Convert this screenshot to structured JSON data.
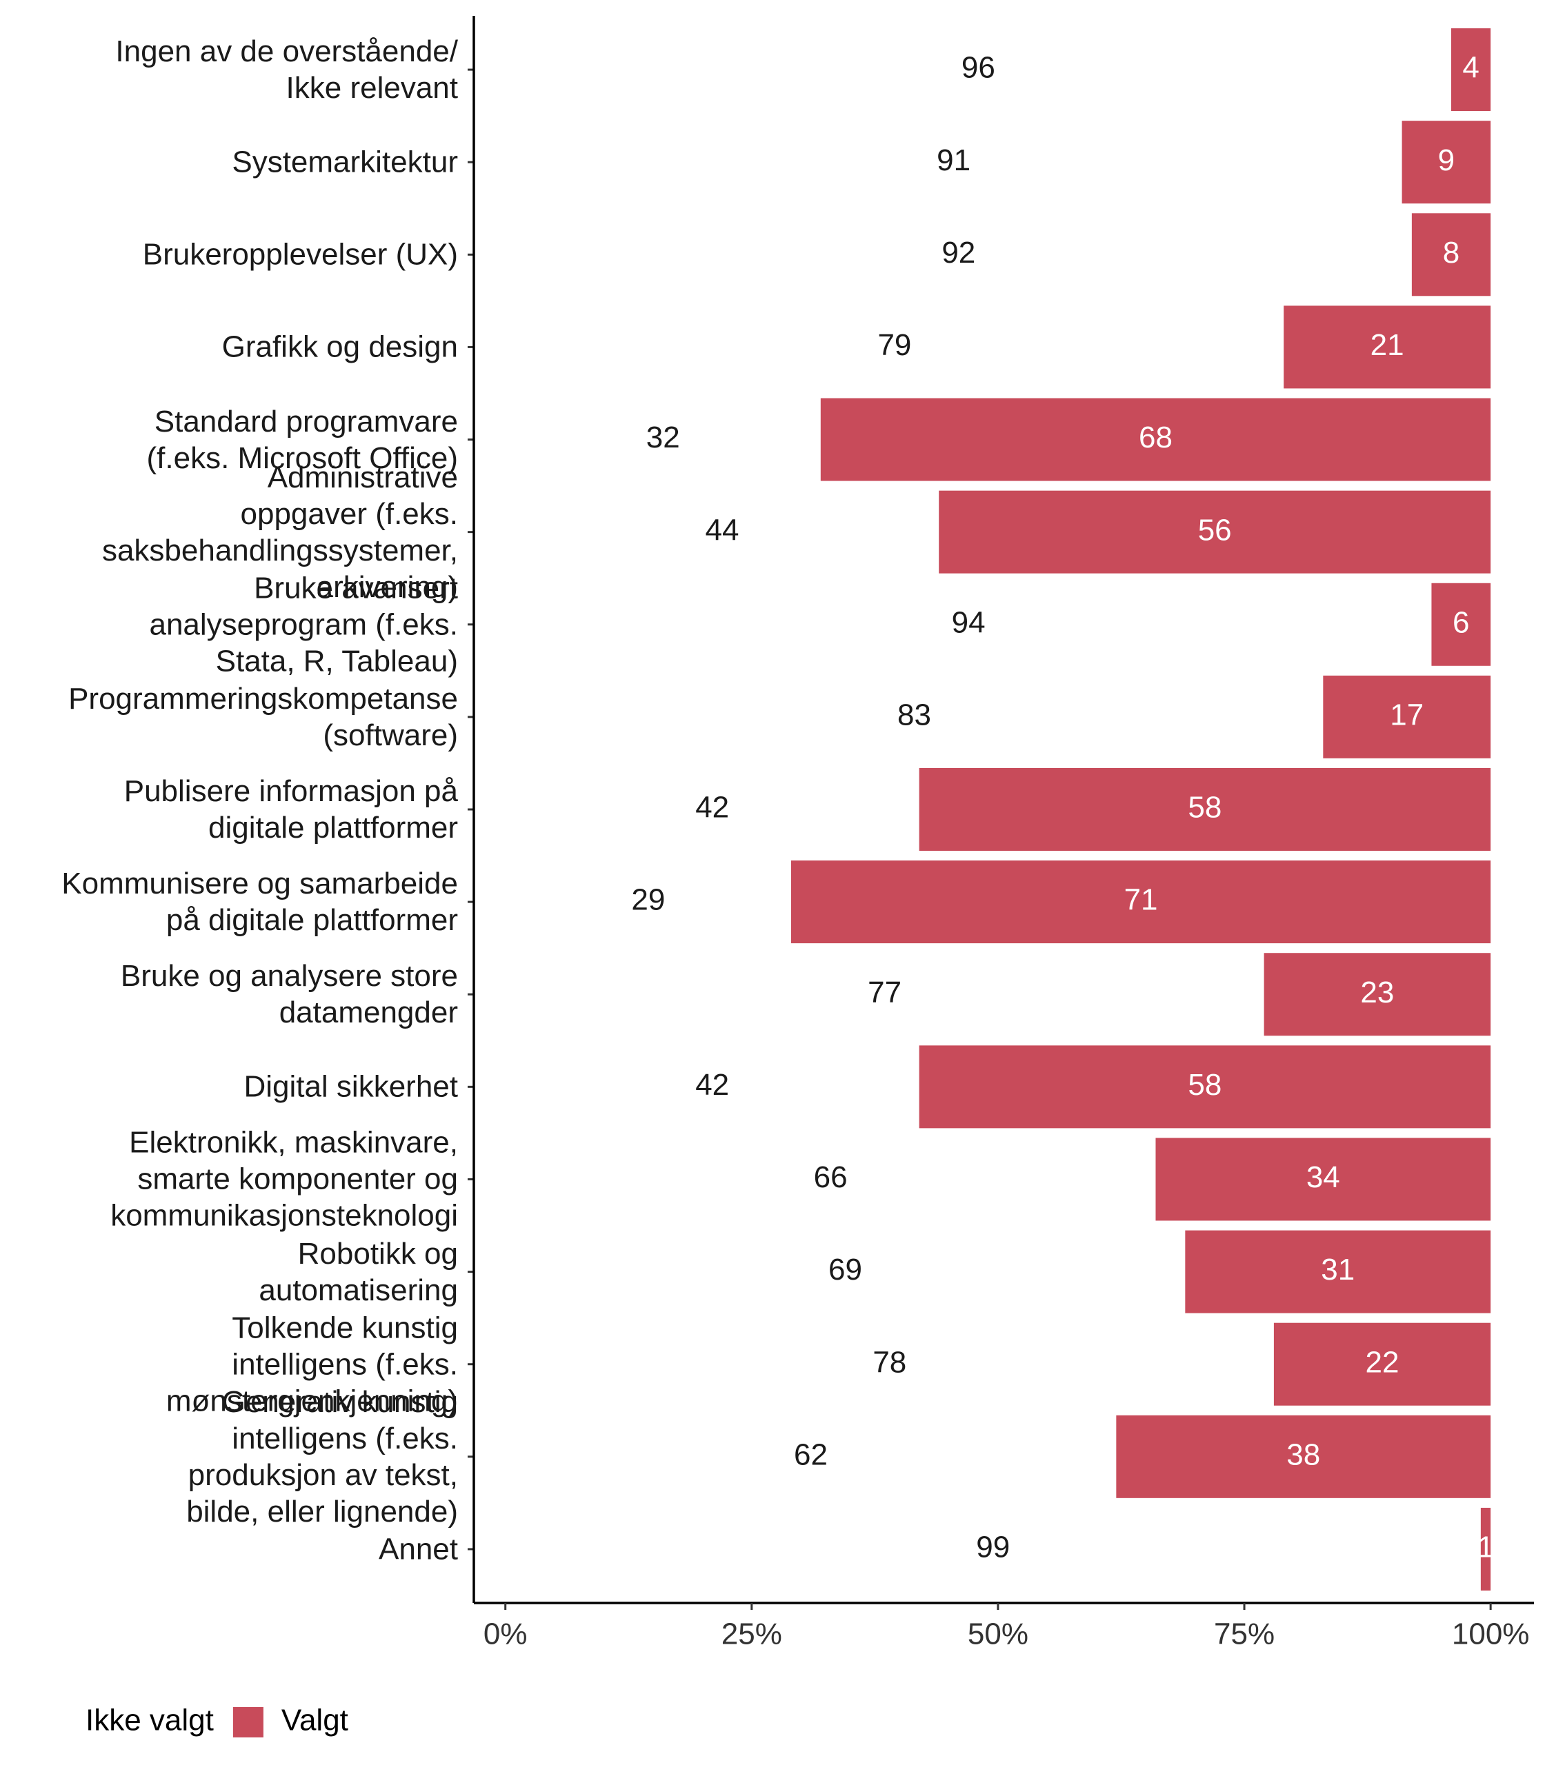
{
  "chart_data": {
    "type": "stacked-barh",
    "categories": [
      "Ingen av de overstående/\nIkke relevant",
      "Systemarkitektur",
      "Brukeropplevelser (UX)",
      "Grafikk og design",
      "Standard programvare\n(f.eks. Microsoft Office)",
      "Administrative\noppgaver (f.eks.\nsaksbehandlingssystemer,\narkivering)",
      "Bruke avansert\nanalyseprogram (f.eks.\nStata, R, Tableau)",
      "Programmeringskompetanse\n(software)",
      "Publisere informasjon på\ndigitale plattformer",
      "Kommunisere og samarbeide\npå digitale plattformer",
      "Bruke og analysere store\ndatamengder",
      "Digital sikkerhet",
      "Elektronikk, maskinvare,\nsmarte komponenter og\nkommunikasjonsteknologi",
      "Robotikk og\nautomatisering",
      "Tolkende kunstig\nintelligens (f.eks.\nmønstergjenkjenning)",
      "Generativ kunstig\nintelligens (f.eks.\nproduksjon av tekst,\nbilde, eller lignende)",
      "Annet"
    ],
    "series": [
      {
        "name": "Ikke valgt",
        "color": "#ffffff",
        "values": [
          96,
          91,
          92,
          79,
          32,
          44,
          94,
          83,
          42,
          29,
          77,
          42,
          66,
          69,
          78,
          62,
          99
        ]
      },
      {
        "name": "Valgt",
        "color": "#c84b5a",
        "values": [
          4,
          9,
          8,
          21,
          68,
          56,
          6,
          17,
          58,
          71,
          23,
          58,
          34,
          31,
          22,
          38,
          1
        ]
      }
    ],
    "xlim": [
      -3.2,
      104.4
    ],
    "xticks": [
      {
        "value": 0,
        "label": "0%"
      },
      {
        "value": 25,
        "label": "25%"
      },
      {
        "value": 50,
        "label": "50%"
      },
      {
        "value": 75,
        "label": "75%"
      },
      {
        "value": 100,
        "label": "100%"
      }
    ],
    "legend": "bottom-left"
  }
}
